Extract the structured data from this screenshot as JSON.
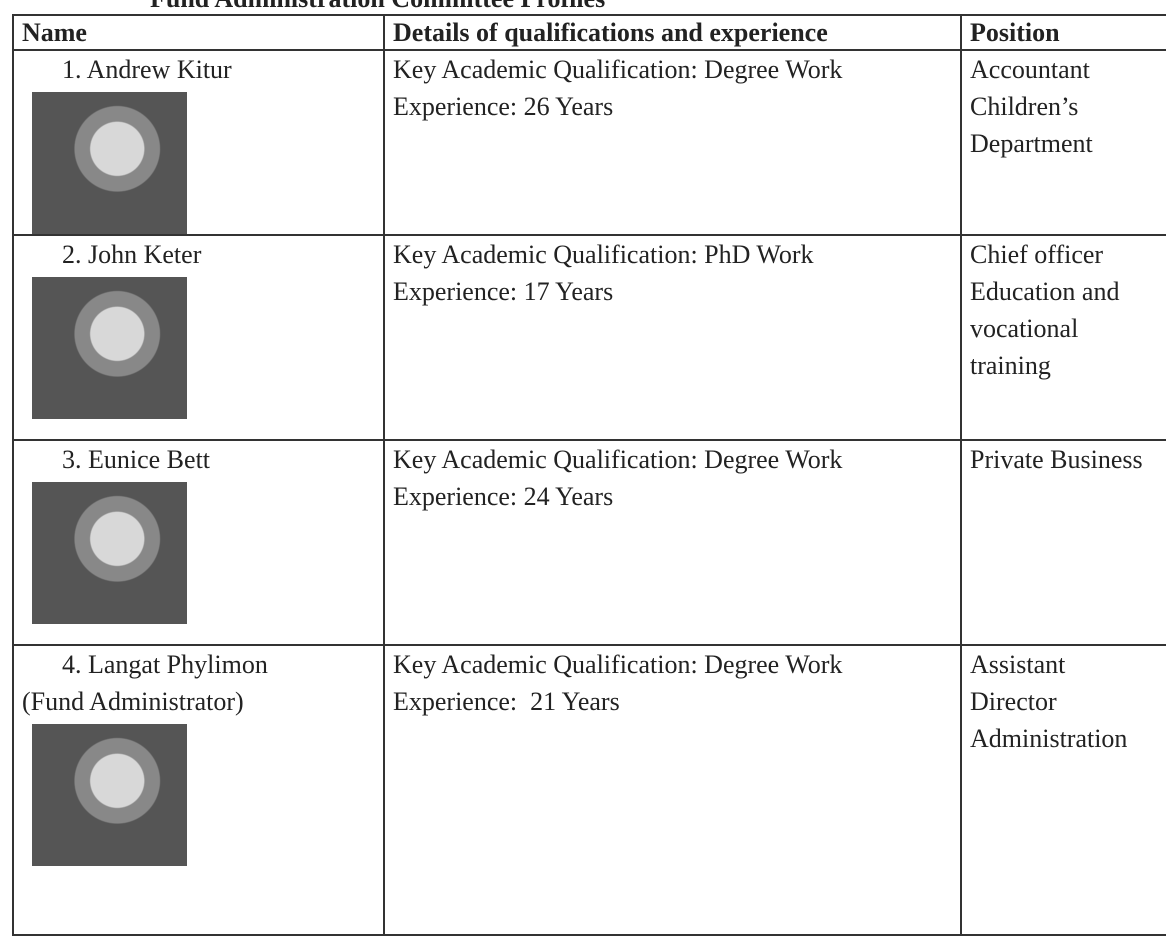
{
  "header": {
    "title": "Fund Administration Committee Profiles"
  },
  "table": {
    "columns": [
      "Name",
      "Details of qualifications and experience",
      "Position"
    ],
    "rows": [
      {
        "name": [
          "1. Andrew Kitur"
        ],
        "details": [
          "Key Academic Qualification: Degree Work",
          "Experience: 26 Years"
        ],
        "position": [
          "Accountant",
          "Children’s",
          "Department"
        ]
      },
      {
        "name": [
          "2. John Keter"
        ],
        "details": [
          "Key Academic Qualification: PhD Work",
          "Experience: 17 Years"
        ],
        "position": [
          "Chief officer",
          "Education and",
          "vocational",
          "training"
        ]
      },
      {
        "name": [
          "3. Eunice Bett"
        ],
        "details": [
          "Key Academic Qualification: Degree Work",
          "Experience: 24 Years"
        ],
        "position": [
          "Private Business"
        ]
      },
      {
        "name": [
          "4. Langat Phylimon",
          "(Fund Administrator)"
        ],
        "details": [
          "Key Academic Qualification: Degree Work",
          "Experience:  21 Years"
        ],
        "position": [
          "Assistant",
          "Director",
          "Administration"
        ]
      }
    ]
  }
}
